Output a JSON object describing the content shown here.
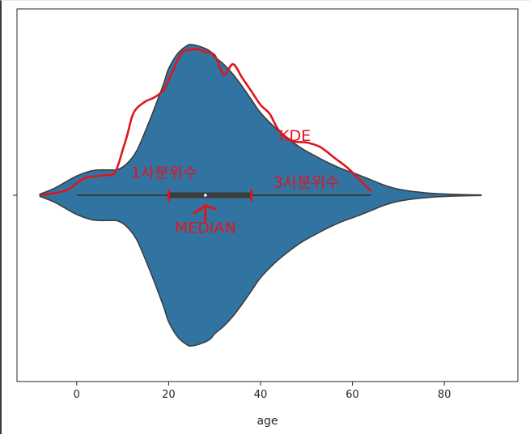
{
  "chart_data": {
    "type": "violin",
    "xlabel": "age",
    "xlim": [
      -13,
      96
    ],
    "x_ticks": [
      0,
      20,
      40,
      60,
      80
    ],
    "x_tick_labels": [
      "0",
      "20",
      "40",
      "60",
      "80"
    ],
    "y_tick_labels": [
      ""
    ],
    "violin": {
      "min": 0,
      "max": 64,
      "kde_extent": [
        -8,
        88
      ],
      "q1": 20,
      "median": 28,
      "q3": 38,
      "density": {
        "x": [
          -8,
          -5,
          -2,
          0,
          3,
          5,
          7,
          9,
          11,
          13,
          15,
          17,
          19,
          20,
          22,
          24,
          25,
          27,
          29,
          30,
          32,
          34,
          36,
          38,
          40,
          43,
          46,
          49,
          52,
          55,
          58,
          61,
          64,
          67,
          70,
          74,
          78,
          82,
          85,
          88
        ],
        "y": [
          0.002,
          0.012,
          0.026,
          0.035,
          0.044,
          0.046,
          0.046,
          0.047,
          0.058,
          0.08,
          0.118,
          0.16,
          0.205,
          0.23,
          0.258,
          0.272,
          0.274,
          0.27,
          0.262,
          0.252,
          0.238,
          0.22,
          0.198,
          0.174,
          0.15,
          0.124,
          0.103,
          0.085,
          0.071,
          0.058,
          0.047,
          0.038,
          0.028,
          0.018,
          0.011,
          0.006,
          0.003,
          0.0015,
          0.0008,
          0.0005
        ],
        "density_max": 0.274
      },
      "fill_color": "#3274a1",
      "edge_color": "#3d3d3d"
    },
    "annotations": [
      {
        "text": "KDE",
        "x": 47.5,
        "level": 0.36,
        "color": "#e0151c"
      },
      {
        "text": "1사분위수",
        "x": 19,
        "level": 0.115,
        "color": "#e0151c"
      },
      {
        "text": "3사분위수",
        "x": 50,
        "level": 0.05,
        "color": "#e0151c"
      },
      {
        "text": "MEDIAN",
        "x": 28,
        "level": -0.25,
        "color": "#e0151c"
      }
    ],
    "kde_trace": {
      "x": [
        -7.5,
        -5,
        -2,
        0,
        2,
        4,
        6,
        8,
        9,
        10,
        11,
        12,
        13,
        15,
        17,
        19,
        20,
        21,
        22,
        23,
        24,
        26,
        28,
        30,
        32,
        34,
        36,
        38,
        40,
        42,
        44,
        47,
        50,
        53,
        56,
        59,
        62,
        64
      ],
      "level": [
        0,
        0.013,
        0.035,
        0.08,
        0.117,
        0.125,
        0.133,
        0.14,
        0.2,
        0.3,
        0.4,
        0.517,
        0.575,
        0.623,
        0.651,
        0.7,
        0.767,
        0.83,
        0.9,
        0.95,
        0.962,
        0.97,
        0.95,
        0.93,
        0.8,
        0.87,
        0.78,
        0.69,
        0.6,
        0.54,
        0.43,
        0.36,
        0.35,
        0.32,
        0.25,
        0.18,
        0.09,
        0.03
      ]
    }
  }
}
